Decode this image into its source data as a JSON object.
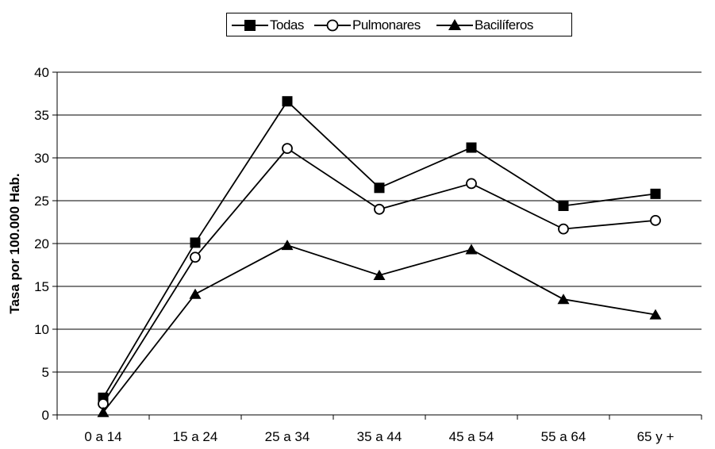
{
  "chart_data": {
    "type": "line",
    "title": "",
    "xlabel": "",
    "ylabel": "Tasa por 100.000 Hab.",
    "ylim": [
      0,
      40
    ],
    "yticks": [
      0,
      5,
      10,
      15,
      20,
      25,
      30,
      35,
      40
    ],
    "grid": true,
    "legend_position": "top-center",
    "categories": [
      "0 a 14",
      "15 a 24",
      "25 a 34",
      "35 a 44",
      "45 a 54",
      "55 a 64",
      "65 y +"
    ],
    "series": [
      {
        "name": "Todas",
        "marker": "square",
        "values": [
          2.0,
          20.1,
          36.6,
          26.5,
          31.2,
          24.4,
          25.8
        ]
      },
      {
        "name": "Pulmonares",
        "marker": "circle",
        "values": [
          1.3,
          18.4,
          31.1,
          24.0,
          27.0,
          21.7,
          22.7
        ]
      },
      {
        "name": "Bacilíferos",
        "marker": "triangle",
        "values": [
          0.3,
          14.1,
          19.8,
          16.3,
          19.3,
          13.5,
          11.7
        ]
      }
    ],
    "colors": {
      "line": "#000000",
      "grid": "#000000"
    }
  }
}
